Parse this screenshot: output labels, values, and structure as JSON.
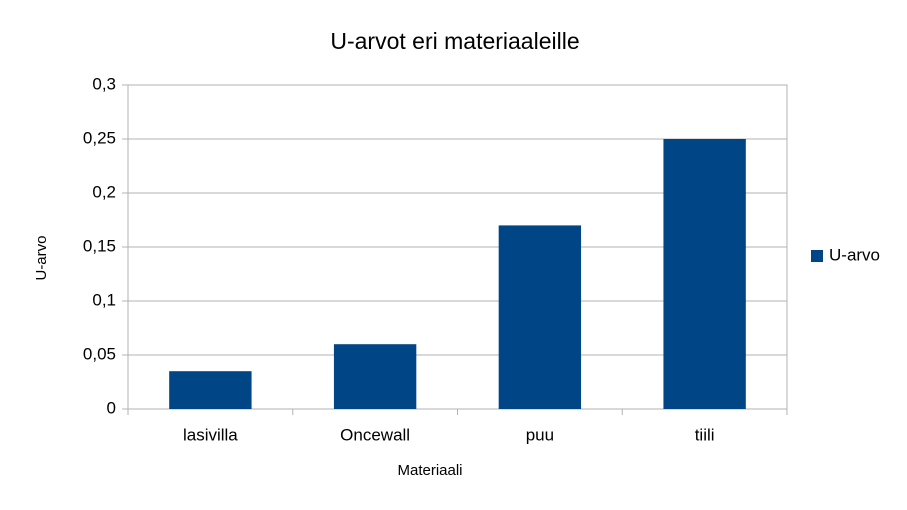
{
  "chart_data": {
    "type": "bar",
    "title": "U-arvot eri materiaaleille",
    "x_label": "Materiaali",
    "y_label": "U-arvo",
    "categories": [
      "lasivilla",
      "Oncewall",
      "puu",
      "tiili"
    ],
    "series": [
      {
        "name": "U-arvo",
        "color": "#004586",
        "values": [
          0.035,
          0.06,
          0.17,
          0.25
        ]
      }
    ],
    "ylim": [
      0,
      0.3
    ],
    "yticks": [
      0,
      {
        "value": 0.05,
        "label": "0,05"
      },
      {
        "value": 0.1,
        "label": "0,1"
      },
      {
        "value": 0.15,
        "label": "0,15"
      },
      {
        "value": 0.2,
        "label": "0,2"
      },
      {
        "value": 0.25,
        "label": "0,25"
      },
      {
        "value": 0.3,
        "label": "0,3"
      }
    ],
    "grid": true,
    "legend": "right"
  }
}
